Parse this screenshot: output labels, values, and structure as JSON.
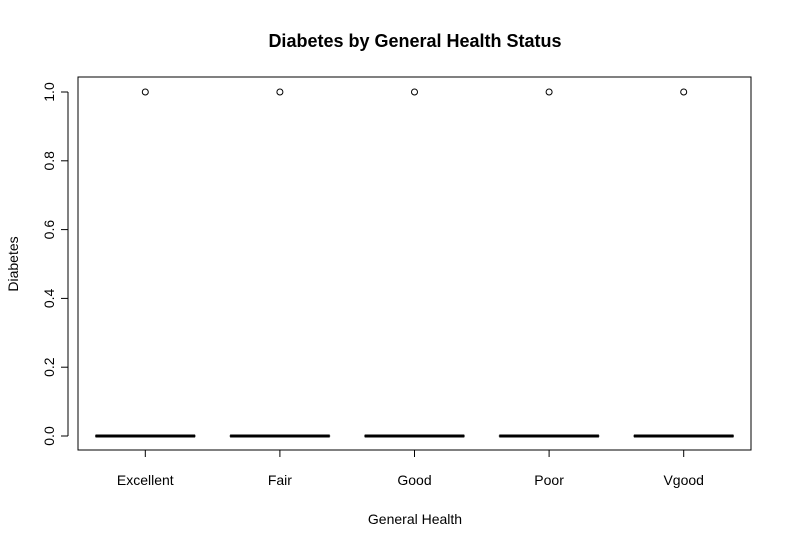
{
  "chart_data": {
    "type": "boxplot",
    "title": "Diabetes by General Health Status",
    "xlabel": "General Health",
    "ylabel": "Diabetes",
    "categories": [
      "Excellent",
      "Fair",
      "Good",
      "Poor",
      "Vgood"
    ],
    "ylim": [
      0.0,
      1.0
    ],
    "yticks": [
      "0.0",
      "0.2",
      "0.4",
      "0.6",
      "0.8",
      "1.0"
    ],
    "boxes": [
      {
        "category": "Excellent",
        "min": 0,
        "q1": 0,
        "median": 0,
        "q3": 0,
        "max": 0,
        "outliers": [
          1
        ]
      },
      {
        "category": "Fair",
        "min": 0,
        "q1": 0,
        "median": 0,
        "q3": 0,
        "max": 0,
        "outliers": [
          1
        ]
      },
      {
        "category": "Good",
        "min": 0,
        "q1": 0,
        "median": 0,
        "q3": 0,
        "max": 0,
        "outliers": [
          1
        ]
      },
      {
        "category": "Poor",
        "min": 0,
        "q1": 0,
        "median": 0,
        "q3": 0,
        "max": 0,
        "outliers": [
          1
        ]
      },
      {
        "category": "Vgood",
        "min": 0,
        "q1": 0,
        "median": 0,
        "q3": 0,
        "max": 0,
        "outliers": [
          1
        ]
      }
    ],
    "grid": false,
    "colors": {
      "line": "#000000",
      "background": "#ffffff"
    }
  }
}
